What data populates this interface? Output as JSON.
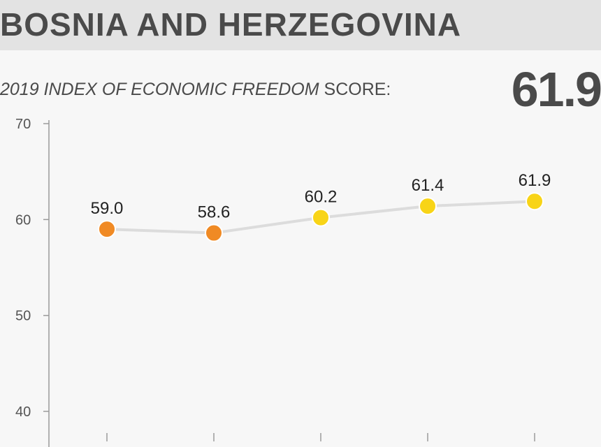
{
  "header": {
    "country": "BOSNIA AND HERZEGOVINA",
    "subtitle_italic": "2019 INDEX OF ECONOMIC FREEDOM",
    "subtitle_rest": " SCORE:",
    "score": "61.9"
  },
  "colors": {
    "orange": "#f08a24",
    "yellow": "#f8d417",
    "line": "#dcdcdc",
    "axis": "#9a9a9a",
    "text": "#4a4a4a"
  },
  "chart_data": {
    "type": "line",
    "title": "2019 INDEX OF ECONOMIC FREEDOM SCORE:",
    "ylim": [
      40,
      70
    ],
    "yticks": [
      40,
      50,
      60,
      70
    ],
    "series": [
      {
        "values": [
          59.0,
          58.6,
          60.2,
          61.4,
          61.9
        ],
        "labels": [
          "59.0",
          "58.6",
          "60.2",
          "61.4",
          "61.9"
        ],
        "point_colors": [
          "orange",
          "orange",
          "yellow",
          "yellow",
          "yellow"
        ]
      }
    ],
    "grid": false
  }
}
